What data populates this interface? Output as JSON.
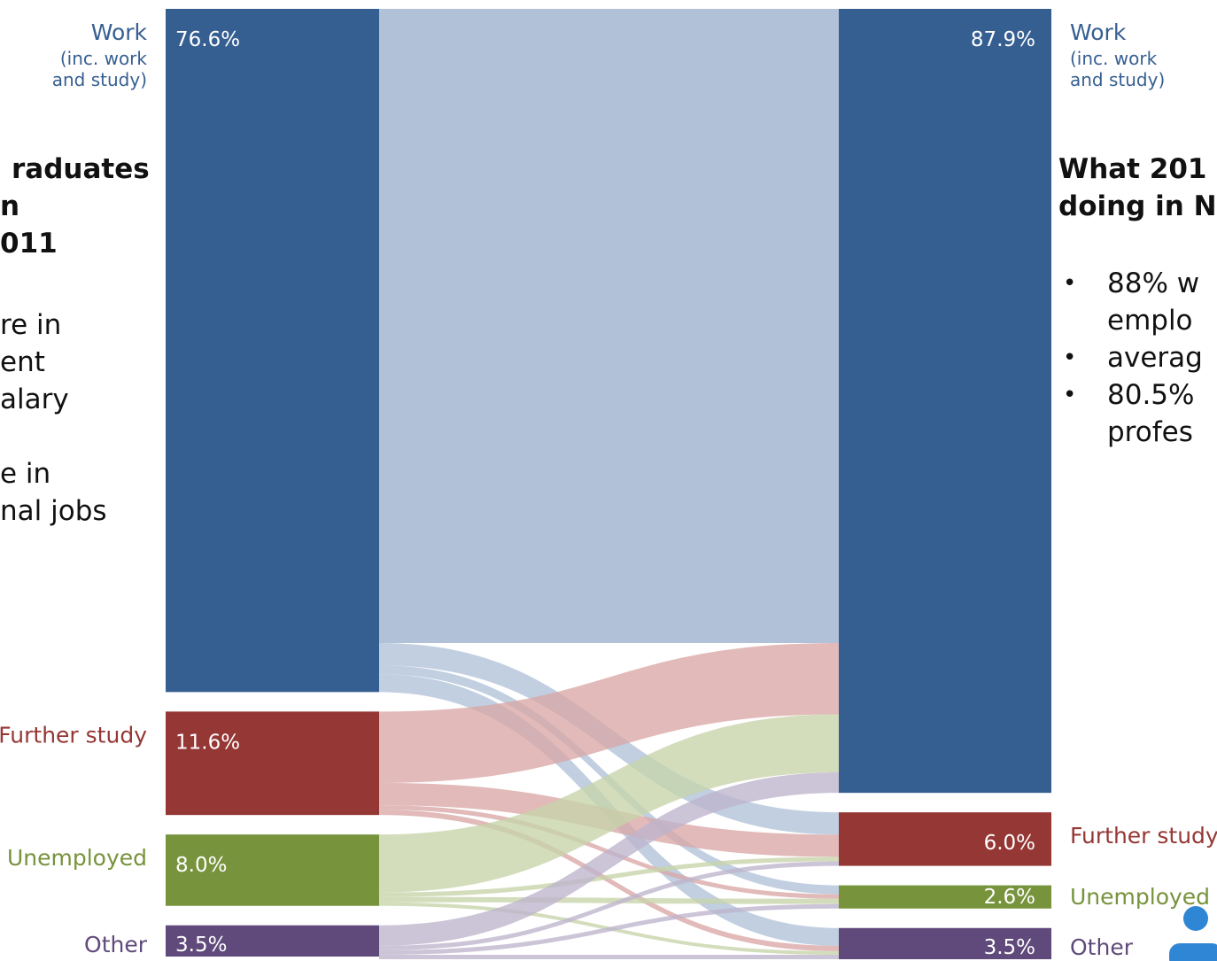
{
  "chart_data": {
    "type": "sankey",
    "nodes_left": [
      {
        "id": "work",
        "label": "Work",
        "sublabel_1": "(inc. work",
        "sublabel_2": "and study)",
        "value": 76.6,
        "value_label": "76.6%",
        "color": "#365f91"
      },
      {
        "id": "further",
        "label": "Further study",
        "value": 11.6,
        "value_label": "11.6%",
        "color": "#953735"
      },
      {
        "id": "unemployed",
        "label": "Unemployed",
        "value": 8.0,
        "value_label": "8.0%",
        "color": "#77933c"
      },
      {
        "id": "other",
        "label": "Other",
        "value": 3.5,
        "value_label": "3.5%",
        "color": "#604a7b"
      }
    ],
    "nodes_right": [
      {
        "id": "work",
        "label": "Work",
        "sublabel_1": "(inc. work",
        "sublabel_2": "and study)",
        "value": 87.9,
        "value_label": "87.9%",
        "color": "#365f91"
      },
      {
        "id": "further",
        "label": "Further study",
        "value": 6.0,
        "value_label": "6.0%",
        "color": "#953735"
      },
      {
        "id": "unemployed",
        "label": "Unemployed",
        "value": 2.6,
        "value_label": "2.6%",
        "color": "#77933c"
      },
      {
        "id": "other",
        "label": "Other",
        "value": 3.5,
        "value_label": "3.5%",
        "color": "#604a7b"
      }
    ],
    "flows": [
      {
        "from": "work",
        "to": "work",
        "value": 71.1
      },
      {
        "from": "work",
        "to": "further",
        "value": 2.5
      },
      {
        "from": "work",
        "to": "unemployed",
        "value": 1.0
      },
      {
        "from": "work",
        "to": "other",
        "value": 2.0
      },
      {
        "from": "further",
        "to": "work",
        "value": 8.0
      },
      {
        "from": "further",
        "to": "further",
        "value": 2.5
      },
      {
        "from": "further",
        "to": "unemployed",
        "value": 0.5
      },
      {
        "from": "further",
        "to": "other",
        "value": 0.6
      },
      {
        "from": "unemployed",
        "to": "work",
        "value": 6.5
      },
      {
        "from": "unemployed",
        "to": "further",
        "value": 0.5
      },
      {
        "from": "unemployed",
        "to": "unemployed",
        "value": 0.6
      },
      {
        "from": "unemployed",
        "to": "other",
        "value": 0.4
      },
      {
        "from": "other",
        "to": "work",
        "value": 2.3
      },
      {
        "from": "other",
        "to": "further",
        "value": 0.5
      },
      {
        "from": "other",
        "to": "unemployed",
        "value": 0.5
      },
      {
        "from": "other",
        "to": "other",
        "value": 0.5
      }
    ]
  },
  "left_panel": {
    "title_lines": [
      "raduates",
      "n",
      "011"
    ],
    "body_lines": [
      "re in",
      "ent",
      "alary",
      "",
      "e in",
      "nal jobs"
    ]
  },
  "right_panel": {
    "title_lines": [
      "What 201",
      "doing in N"
    ],
    "bullets": [
      {
        "lines": [
          "88% w",
          "emplo"
        ]
      },
      {
        "lines": [
          "averag"
        ]
      },
      {
        "lines": [
          "80.5%",
          "profes"
        ]
      }
    ]
  },
  "colors": {
    "flow_work": "#b0c1d8",
    "flow_further": "#d9a6a5",
    "flow_unemployed": "#c6d4a9",
    "flow_other": "#beb3cc",
    "logo": "#2f86d4"
  }
}
